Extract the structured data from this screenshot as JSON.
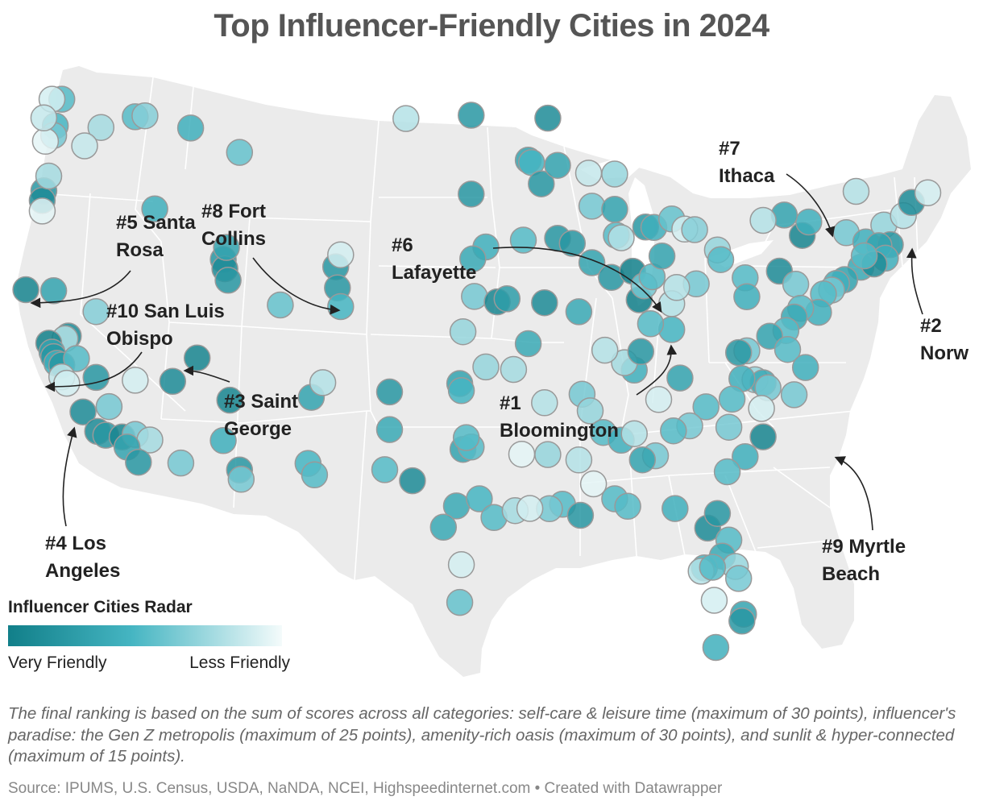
{
  "title": "Top Influencer-Friendly Cities in 2024",
  "legend": {
    "title": "Influencer Cities Radar",
    "left_label": "Very Friendly",
    "right_label": "Less Friendly",
    "color_high": "#117f89",
    "color_mid": "#45b5c2",
    "color_low": "#f4fbfb"
  },
  "colors": {
    "land": "#ebebeb",
    "border": "#ffffff",
    "circle_stroke": "#999999",
    "arrow": "#222222"
  },
  "labels": [
    {
      "rank": "#1",
      "city": "Bloomington",
      "line1": "#1",
      "line2": "Bloomington"
    },
    {
      "rank": "#2",
      "city": "Norwich",
      "line1": "#2",
      "line2": "Norw"
    },
    {
      "rank": "#3",
      "city": "Saint George",
      "line1": "#3 Saint",
      "line2": "George"
    },
    {
      "rank": "#4",
      "city": "Los Angeles",
      "line1": "#4 Los",
      "line2": "Angeles"
    },
    {
      "rank": "#5",
      "city": "Santa Rosa",
      "line1": "#5 Santa",
      "line2": "Rosa"
    },
    {
      "rank": "#6",
      "city": "Lafayette",
      "line1": "#6",
      "line2": "Lafayette"
    },
    {
      "rank": "#7",
      "city": "Ithaca",
      "line1": "#7",
      "line2": "Ithaca"
    },
    {
      "rank": "#8",
      "city": "Fort Collins",
      "line1": "#8 Fort",
      "line2": "Collins"
    },
    {
      "rank": "#9",
      "city": "Myrtle Beach",
      "line1": "#9 Myrtle",
      "line2": "Beach"
    },
    {
      "rank": "#10",
      "city": "San Luis Obispo",
      "line1": "#10 San Luis",
      "line2": "Obispo"
    }
  ],
  "note": "The final ranking is based on the sum of scores across all categories: self-care & leisure time (maximum of 30 points), influencer's paradise: the Gen Z metropolis (maximum of 25 points), amenity-rich oasis (maximum of 30 points), and sunlit & hyper-connected (maximum of 15 points).",
  "source": "Source: IPUMS, U.S. Census, USDA, NaNDA, NCEI, Highspeedinternet.com • Created with Datawrapper",
  "cities": [
    {
      "lon": -122.3,
      "lat": 47.6,
      "score": 0.45
    },
    {
      "lon": -122.4,
      "lat": 47.2,
      "score": 0.6
    },
    {
      "lon": -122.9,
      "lat": 47.0,
      "score": 0.95
    },
    {
      "lon": -121.9,
      "lat": 48.7,
      "score": 0.5
    },
    {
      "lon": -122.5,
      "lat": 48.75,
      "score": 0.9
    },
    {
      "lon": -123.0,
      "lat": 48.0,
      "score": 0.85
    },
    {
      "lon": -119.5,
      "lat": 47.3,
      "score": 0.75
    },
    {
      "lon": -120.5,
      "lat": 46.6,
      "score": 0.85
    },
    {
      "lon": -117.4,
      "lat": 47.6,
      "score": 0.5
    },
    {
      "lon": -116.8,
      "lat": 47.6,
      "score": 0.65
    },
    {
      "lon": -123.0,
      "lat": 44.9,
      "score": 0.2
    },
    {
      "lon": -123.1,
      "lat": 44.5,
      "score": 0.1
    },
    {
      "lon": -122.7,
      "lat": 45.5,
      "score": 0.75
    },
    {
      "lon": -123.1,
      "lat": 44.05,
      "score": 0.95
    },
    {
      "lon": -116.2,
      "lat": 43.6,
      "score": 0.4
    },
    {
      "lon": -124.1,
      "lat": 40.8,
      "score": 0.05
    },
    {
      "lon": -122.4,
      "lat": 40.6,
      "score": 0.3
    },
    {
      "lon": -121.5,
      "lat": 38.6,
      "score": 0.1
    },
    {
      "lon": -121.7,
      "lat": 38.5,
      "score": 0.8
    },
    {
      "lon": -122.7,
      "lat": 38.4,
      "score": 0.01
    },
    {
      "lon": -122.5,
      "lat": 38.0,
      "score": 0.3
    },
    {
      "lon": -122.4,
      "lat": 37.8,
      "score": 0.2
    },
    {
      "lon": -122.2,
      "lat": 37.5,
      "score": 0.4
    },
    {
      "lon": -121.9,
      "lat": 37.4,
      "score": 0.2
    },
    {
      "lon": -121.0,
      "lat": 37.6,
      "score": 0.5
    },
    {
      "lon": -121.9,
      "lat": 36.9,
      "score": 0.85
    },
    {
      "lon": -121.6,
      "lat": 36.6,
      "score": 0.9
    },
    {
      "lon": -120.6,
      "lat": 35.3,
      "score": 0.1
    },
    {
      "lon": -119.7,
      "lat": 34.4,
      "score": 0.1
    },
    {
      "lon": -119.0,
      "lat": 35.4,
      "score": 0.6
    },
    {
      "lon": -119.2,
      "lat": 34.2,
      "score": 0.2
    },
    {
      "lon": -118.2,
      "lat": 34.05,
      "score": 0.05
    },
    {
      "lon": -117.4,
      "lat": 34.1,
      "score": 0.6
    },
    {
      "lon": -116.5,
      "lat": 33.8,
      "score": 0.75
    },
    {
      "lon": -117.9,
      "lat": 33.6,
      "score": 0.3
    },
    {
      "lon": -117.2,
      "lat": 32.9,
      "score": 0.2
    },
    {
      "lon": -119.8,
      "lat": 36.7,
      "score": 0.2
    },
    {
      "lon": -119.8,
      "lat": 39.5,
      "score": 0.65
    },
    {
      "lon": -117.4,
      "lat": 36.4,
      "score": 0.9
    },
    {
      "lon": -115.1,
      "lat": 36.2,
      "score": 0.1
    },
    {
      "lon": -113.6,
      "lat": 37.1,
      "score": 0.05
    },
    {
      "lon": -112.0,
      "lat": 41.2,
      "score": 0.2
    },
    {
      "lon": -111.9,
      "lat": 40.8,
      "score": 0.1
    },
    {
      "lon": -111.7,
      "lat": 40.3,
      "score": 0.2
    },
    {
      "lon": -111.8,
      "lat": 41.7,
      "score": 0.3
    },
    {
      "lon": -114.0,
      "lat": 46.9,
      "score": 0.4
    },
    {
      "lon": -111.0,
      "lat": 45.7,
      "score": 0.55
    },
    {
      "lon": -105.1,
      "lat": 40.6,
      "score": 0.2
    },
    {
      "lon": -104.8,
      "lat": 41.1,
      "score": 0.9
    },
    {
      "lon": -105.0,
      "lat": 39.7,
      "score": 0.2
    },
    {
      "lon": -104.8,
      "lat": 38.9,
      "score": 0.45
    },
    {
      "lon": -108.5,
      "lat": 39.1,
      "score": 0.55
    },
    {
      "lon": -111.6,
      "lat": 35.2,
      "score": 0.05
    },
    {
      "lon": -112.0,
      "lat": 33.5,
      "score": 0.4
    },
    {
      "lon": -111.0,
      "lat": 32.2,
      "score": 0.2
    },
    {
      "lon": -110.9,
      "lat": 31.8,
      "score": 0.6
    },
    {
      "lon": -114.6,
      "lat": 32.7,
      "score": 0.6
    },
    {
      "lon": -106.6,
      "lat": 35.1,
      "score": 0.3
    },
    {
      "lon": -106.8,
      "lat": 32.3,
      "score": 0.45
    },
    {
      "lon": -106.4,
      "lat": 31.8,
      "score": 0.5
    },
    {
      "lon": -105.9,
      "lat": 35.7,
      "score": 0.8
    },
    {
      "lon": -101.8,
      "lat": 35.2,
      "score": 0.2
    },
    {
      "lon": -101.8,
      "lat": 33.6,
      "score": 0.35
    },
    {
      "lon": -102.1,
      "lat": 31.9,
      "score": 0.5
    },
    {
      "lon": -100.4,
      "lat": 31.4,
      "score": 0.1
    },
    {
      "lon": -97.7,
      "lat": 30.3,
      "score": 0.35
    },
    {
      "lon": -96.3,
      "lat": 30.6,
      "score": 0.45
    },
    {
      "lon": -98.5,
      "lat": 29.4,
      "score": 0.35
    },
    {
      "lon": -97.4,
      "lat": 27.8,
      "score": 0.9
    },
    {
      "lon": -97.5,
      "lat": 26.2,
      "score": 0.55
    },
    {
      "lon": -95.4,
      "lat": 29.8,
      "score": 0.5
    },
    {
      "lon": -94.1,
      "lat": 30.1,
      "score": 0.75
    },
    {
      "lon": -97.3,
      "lat": 32.7,
      "score": 0.3
    },
    {
      "lon": -96.8,
      "lat": 32.8,
      "score": 0.5
    },
    {
      "lon": -97.1,
      "lat": 33.2,
      "score": 0.5
    },
    {
      "lon": -97.5,
      "lat": 35.5,
      "score": 0.3
    },
    {
      "lon": -97.4,
      "lat": 35.2,
      "score": 0.45
    },
    {
      "lon": -95.9,
      "lat": 36.2,
      "score": 0.7
    },
    {
      "lon": -97.3,
      "lat": 37.7,
      "score": 0.7
    },
    {
      "lon": -96.6,
      "lat": 39.2,
      "score": 0.6
    },
    {
      "lon": -95.2,
      "lat": 38.97,
      "score": 0.05
    },
    {
      "lon": -94.6,
      "lat": 39.1,
      "score": 0.25
    },
    {
      "lon": -95.9,
      "lat": 41.3,
      "score": 0.4
    },
    {
      "lon": -96.7,
      "lat": 40.8,
      "score": 0.35
    },
    {
      "lon": -96.8,
      "lat": 43.55,
      "score": 0.2
    },
    {
      "lon": -100.8,
      "lat": 46.8,
      "score": 0.8
    },
    {
      "lon": -96.8,
      "lat": 46.9,
      "score": 0.2
    },
    {
      "lon": -92.1,
      "lat": 46.8,
      "score": 0.1
    },
    {
      "lon": -93.3,
      "lat": 45.0,
      "score": 0.3
    },
    {
      "lon": -93.1,
      "lat": 44.9,
      "score": 0.45
    },
    {
      "lon": -92.5,
      "lat": 44.0,
      "score": 0.2
    },
    {
      "lon": -91.5,
      "lat": 44.8,
      "score": 0.3
    },
    {
      "lon": -89.6,
      "lat": 44.5,
      "score": 0.85
    },
    {
      "lon": -88.0,
      "lat": 44.5,
      "score": 0.7
    },
    {
      "lon": -89.4,
      "lat": 43.1,
      "score": 0.6
    },
    {
      "lon": -88.0,
      "lat": 43.0,
      "score": 0.3
    },
    {
      "lon": -91.5,
      "lat": 41.7,
      "score": 0.2
    },
    {
      "lon": -93.6,
      "lat": 41.6,
      "score": 0.5
    },
    {
      "lon": -90.6,
      "lat": 41.5,
      "score": 0.2
    },
    {
      "lon": -89.4,
      "lat": 40.7,
      "score": 0.3
    },
    {
      "lon": -88.2,
      "lat": 40.1,
      "score": 0.2
    },
    {
      "lon": -87.9,
      "lat": 41.9,
      "score": 0.5
    },
    {
      "lon": -87.6,
      "lat": 41.8,
      "score": 0.8
    },
    {
      "lon": -86.9,
      "lat": 40.4,
      "score": 0.0
    },
    {
      "lon": -86.5,
      "lat": 39.2,
      "score": 0.0
    },
    {
      "lon": -86.2,
      "lat": 39.8,
      "score": 0.6
    },
    {
      "lon": -85.7,
      "lat": 40.2,
      "score": 0.5
    },
    {
      "lon": -85.1,
      "lat": 41.1,
      "score": 0.3
    },
    {
      "lon": -86.1,
      "lat": 42.3,
      "score": 0.2
    },
    {
      "lon": -85.6,
      "lat": 42.3,
      "score": 0.4
    },
    {
      "lon": -84.5,
      "lat": 42.7,
      "score": 0.55
    },
    {
      "lon": -83.7,
      "lat": 42.3,
      "score": 0.9
    },
    {
      "lon": -83.1,
      "lat": 42.3,
      "score": 0.65
    },
    {
      "lon": -84.5,
      "lat": 39.1,
      "score": 0.8
    },
    {
      "lon": -83.0,
      "lat": 40.0,
      "score": 0.6
    },
    {
      "lon": -84.2,
      "lat": 39.8,
      "score": 0.8
    },
    {
      "lon": -81.7,
      "lat": 41.5,
      "score": 0.7
    },
    {
      "lon": -81.5,
      "lat": 41.1,
      "score": 0.5
    },
    {
      "lon": -80.0,
      "lat": 40.4,
      "score": 0.5
    },
    {
      "lon": -79.9,
      "lat": 39.6,
      "score": 0.4
    },
    {
      "lon": -77.9,
      "lat": 40.8,
      "score": 0.1
    },
    {
      "lon": -76.9,
      "lat": 40.3,
      "score": 0.6
    },
    {
      "lon": -76.5,
      "lat": 42.4,
      "score": 0.05
    },
    {
      "lon": -76.1,
      "lat": 43.0,
      "score": 0.4
    },
    {
      "lon": -77.6,
      "lat": 43.2,
      "score": 0.3
    },
    {
      "lon": -78.9,
      "lat": 42.9,
      "score": 0.8
    },
    {
      "lon": -73.8,
      "lat": 42.7,
      "score": 0.6
    },
    {
      "lon": -73.2,
      "lat": 44.5,
      "score": 0.8
    },
    {
      "lon": -72.6,
      "lat": 42.4,
      "score": 0.4
    },
    {
      "lon": -71.5,
      "lat": 43.2,
      "score": 0.7
    },
    {
      "lon": -70.3,
      "lat": 43.7,
      "score": 0.8
    },
    {
      "lon": -69.8,
      "lat": 44.3,
      "score": 0.1
    },
    {
      "lon": -68.8,
      "lat": 44.8,
      "score": 0.9
    },
    {
      "lon": -71.1,
      "lat": 42.4,
      "score": 0.2
    },
    {
      "lon": -71.8,
      "lat": 42.3,
      "score": 0.3
    },
    {
      "lon": -71.4,
      "lat": 41.8,
      "score": 0.4
    },
    {
      "lon": -72.9,
      "lat": 41.3,
      "score": 0.35
    },
    {
      "lon": -72.1,
      "lat": 41.5,
      "score": 0.1
    },
    {
      "lon": -72.7,
      "lat": 41.8,
      "score": 0.5
    },
    {
      "lon": -73.9,
      "lat": 40.7,
      "score": 0.3
    },
    {
      "lon": -74.4,
      "lat": 40.5,
      "score": 0.4
    },
    {
      "lon": -74.7,
      "lat": 40.2,
      "score": 0.6
    },
    {
      "lon": -75.2,
      "lat": 40.0,
      "score": 0.5
    },
    {
      "lon": -75.5,
      "lat": 39.2,
      "score": 0.4
    },
    {
      "lon": -76.6,
      "lat": 39.3,
      "score": 0.5
    },
    {
      "lon": -77.0,
      "lat": 38.9,
      "score": 0.35
    },
    {
      "lon": -77.5,
      "lat": 38.3,
      "score": 0.5
    },
    {
      "lon": -78.5,
      "lat": 38.0,
      "score": 0.3
    },
    {
      "lon": -77.4,
      "lat": 37.5,
      "score": 0.5
    },
    {
      "lon": -76.3,
      "lat": 36.8,
      "score": 0.4
    },
    {
      "lon": -79.9,
      "lat": 37.3,
      "score": 0.6
    },
    {
      "lon": -80.4,
      "lat": 37.2,
      "score": 0.2
    },
    {
      "lon": -79.4,
      "lat": 36.1,
      "score": 0.7
    },
    {
      "lon": -78.9,
      "lat": 36.0,
      "score": 0.35
    },
    {
      "lon": -78.6,
      "lat": 35.8,
      "score": 0.6
    },
    {
      "lon": -80.2,
      "lat": 36.1,
      "score": 0.4
    },
    {
      "lon": -80.8,
      "lat": 35.2,
      "score": 0.5
    },
    {
      "lon": -77.0,
      "lat": 35.6,
      "score": 0.6
    },
    {
      "lon": -79.0,
      "lat": 34.9,
      "score": 0.9
    },
    {
      "lon": -78.9,
      "lat": 33.7,
      "score": 0.05
    },
    {
      "lon": -80.0,
      "lat": 32.8,
      "score": 0.4
    },
    {
      "lon": -81.0,
      "lat": 34.0,
      "score": 0.6
    },
    {
      "lon": -82.4,
      "lat": 34.8,
      "score": 0.5
    },
    {
      "lon": -81.1,
      "lat": 32.1,
      "score": 0.5
    },
    {
      "lon": -83.4,
      "lat": 33.95,
      "score": 0.6
    },
    {
      "lon": -84.4,
      "lat": 33.7,
      "score": 0.5
    },
    {
      "lon": -84.0,
      "lat": 35.96,
      "score": 0.3
    },
    {
      "lon": -85.3,
      "lat": 35.0,
      "score": 0.9
    },
    {
      "lon": -86.8,
      "lat": 36.2,
      "score": 0.4
    },
    {
      "lon": -87.4,
      "lat": 36.5,
      "score": 0.75
    },
    {
      "lon": -84.5,
      "lat": 38.0,
      "score": 0.45
    },
    {
      "lon": -85.8,
      "lat": 38.2,
      "score": 0.5
    },
    {
      "lon": -86.4,
      "lat": 37.0,
      "score": 0.2
    },
    {
      "lon": -88.6,
      "lat": 37.0,
      "score": 0.8
    },
    {
      "lon": -90.2,
      "lat": 38.6,
      "score": 0.35
    },
    {
      "lon": -92.3,
      "lat": 38.95,
      "score": 0.1
    },
    {
      "lon": -93.3,
      "lat": 37.2,
      "score": 0.35
    },
    {
      "lon": -94.2,
      "lat": 36.1,
      "score": 0.75
    },
    {
      "lon": -92.3,
      "lat": 34.7,
      "score": 0.8
    },
    {
      "lon": -90.0,
      "lat": 35.1,
      "score": 0.6
    },
    {
      "lon": -89.5,
      "lat": 34.4,
      "score": 0.7
    },
    {
      "lon": -88.7,
      "lat": 33.5,
      "score": 0.5
    },
    {
      "lon": -87.6,
      "lat": 33.2,
      "score": 0.4
    },
    {
      "lon": -86.8,
      "lat": 33.5,
      "score": 0.8
    },
    {
      "lon": -85.5,
      "lat": 32.6,
      "score": 0.6
    },
    {
      "lon": -86.3,
      "lat": 32.4,
      "score": 0.3
    },
    {
      "lon": -88.0,
      "lat": 30.7,
      "score": 0.5
    },
    {
      "lon": -89.3,
      "lat": 31.3,
      "score": 0.95
    },
    {
      "lon": -90.2,
      "lat": 32.3,
      "score": 0.8
    },
    {
      "lon": -91.2,
      "lat": 30.4,
      "score": 0.5
    },
    {
      "lon": -90.1,
      "lat": 29.95,
      "score": 0.2
    },
    {
      "lon": -92.0,
      "lat": 30.2,
      "score": 0.6
    },
    {
      "lon": -93.2,
      "lat": 30.2,
      "score": 0.9
    },
    {
      "lon": -92.1,
      "lat": 32.5,
      "score": 0.7
    },
    {
      "lon": -93.7,
      "lat": 32.5,
      "score": 0.95
    },
    {
      "lon": -84.3,
      "lat": 30.4,
      "score": 0.4
    },
    {
      "lon": -87.2,
      "lat": 30.4,
      "score": 0.5
    },
    {
      "lon": -82.3,
      "lat": 29.65,
      "score": 0.1
    },
    {
      "lon": -81.7,
      "lat": 30.3,
      "score": 0.2
    },
    {
      "lon": -81.0,
      "lat": 29.2,
      "score": 0.5
    },
    {
      "lon": -81.4,
      "lat": 28.5,
      "score": 0.35
    },
    {
      "lon": -80.6,
      "lat": 28.1,
      "score": 0.7
    },
    {
      "lon": -82.5,
      "lat": 27.95,
      "score": 0.4
    },
    {
      "lon": -82.7,
      "lat": 27.8,
      "score": 0.8
    },
    {
      "lon": -81.9,
      "lat": 26.6,
      "score": 0.9
    },
    {
      "lon": -80.1,
      "lat": 26.1,
      "score": 0.3
    },
    {
      "lon": -80.2,
      "lat": 25.8,
      "score": 0.2
    },
    {
      "lon": -82.0,
      "lat": 28.0,
      "score": 0.5
    },
    {
      "lon": -80.4,
      "lat": 27.6,
      "score": 0.6
    },
    {
      "lon": -81.8,
      "lat": 24.6,
      "score": 0.4
    }
  ]
}
